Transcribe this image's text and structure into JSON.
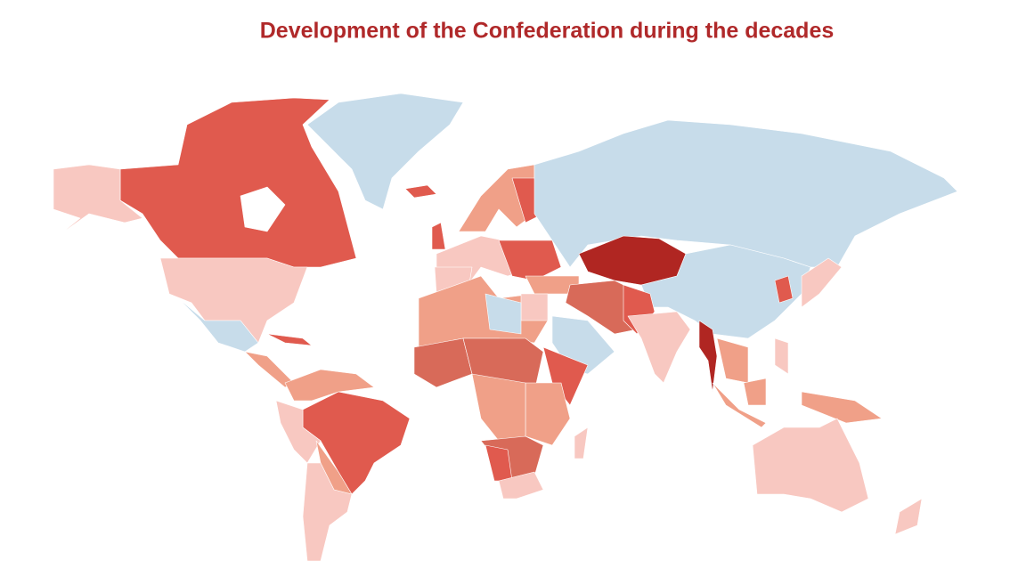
{
  "title": "Development of the Confederation during the decades"
}
